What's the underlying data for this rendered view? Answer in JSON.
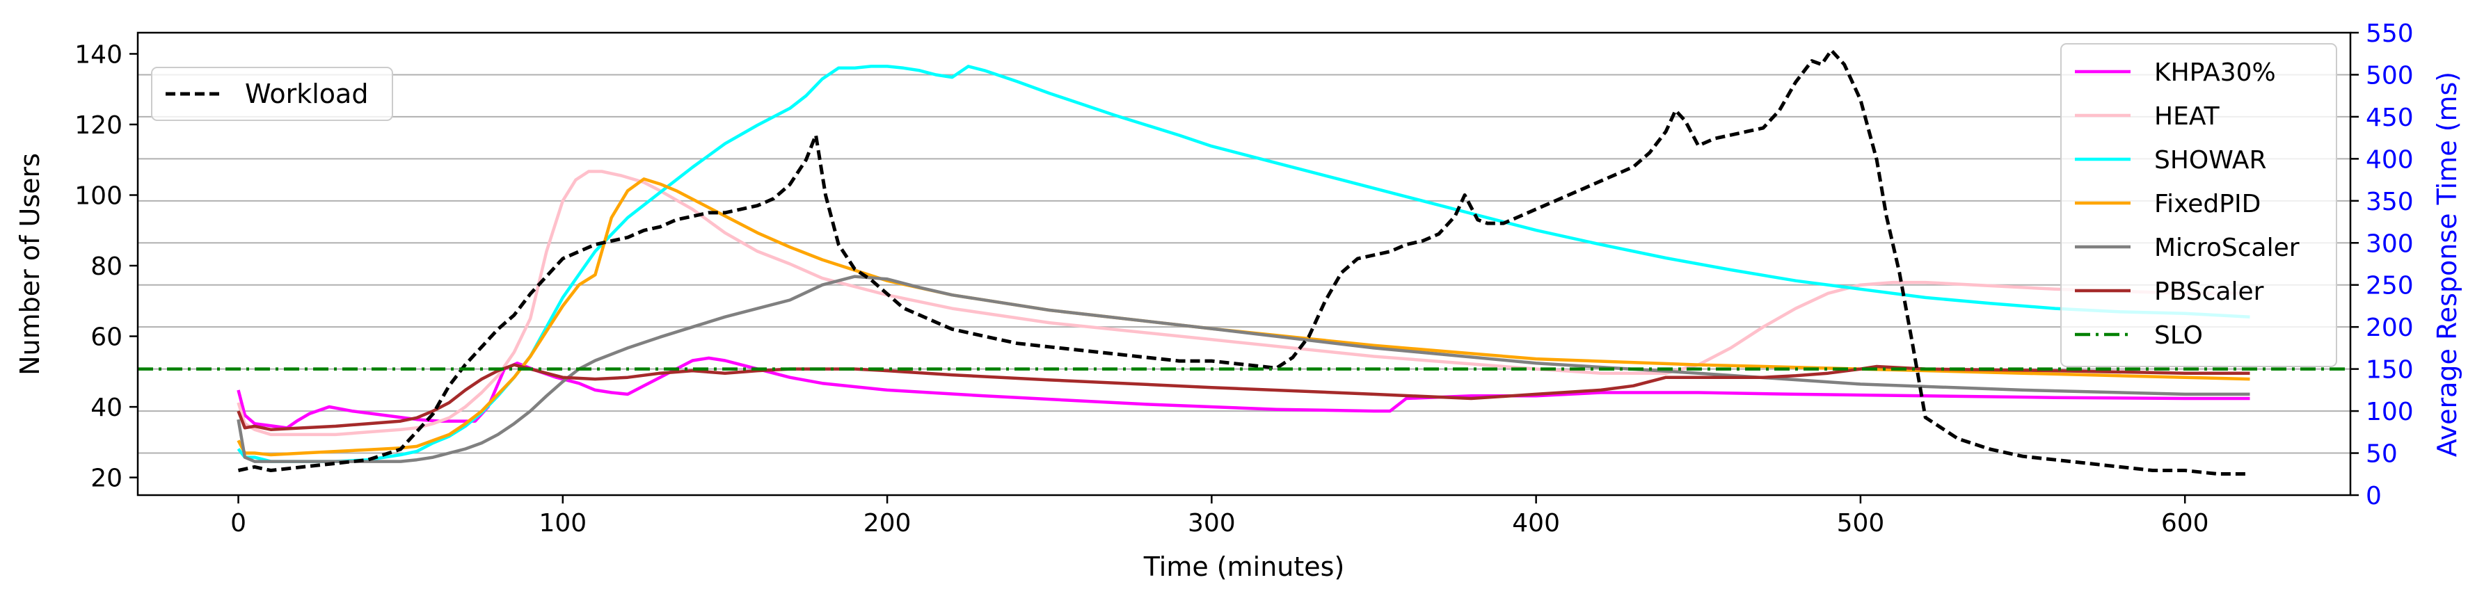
{
  "chart_data": {
    "type": "line",
    "xlabel": "Time (minutes)",
    "ylabel": "Number of Users",
    "ylabel_right": "Average Response Time (ms)",
    "xlim": [
      -31,
      651
    ],
    "ylim": [
      15,
      146
    ],
    "ylim_right": [
      0,
      550
    ],
    "xticks": [
      0,
      100,
      200,
      300,
      400,
      500,
      600
    ],
    "yticks": [
      20,
      40,
      60,
      80,
      100,
      120,
      140
    ],
    "yticks_right": [
      0,
      50,
      100,
      150,
      200,
      250,
      300,
      350,
      400,
      450,
      500,
      550
    ],
    "grid": "horizontal, right axis",
    "right_axis_color": "#0000ff",
    "legend_left": {
      "placement": "upper-left",
      "entries": [
        "Workload"
      ]
    },
    "legend_right": {
      "placement": "upper-right",
      "entries": [
        "KHPA30%",
        "HEAT",
        "SHOWAR",
        "FixedPID",
        "MicroScaler",
        "PBScaler",
        "SLO"
      ]
    },
    "workload": {
      "name": "Workload",
      "axis": "left",
      "color": "#000000",
      "style": "dashed",
      "x": [
        0,
        5,
        10,
        20,
        30,
        40,
        50,
        55,
        60,
        65,
        70,
        75,
        80,
        85,
        90,
        95,
        100,
        105,
        110,
        115,
        120,
        125,
        130,
        135,
        140,
        145,
        150,
        155,
        160,
        165,
        170,
        175,
        178,
        181,
        185,
        190,
        195,
        200,
        205,
        210,
        215,
        220,
        225,
        230,
        240,
        250,
        260,
        270,
        280,
        290,
        300,
        310,
        320,
        325,
        330,
        335,
        340,
        345,
        350,
        355,
        360,
        365,
        370,
        375,
        378,
        382,
        385,
        390,
        395,
        400,
        405,
        410,
        415,
        420,
        425,
        430,
        435,
        440,
        443,
        446,
        450,
        455,
        460,
        465,
        470,
        475,
        480,
        485,
        488,
        491,
        495,
        500,
        505,
        508,
        512,
        516,
        520,
        525,
        530,
        540,
        550,
        560,
        570,
        580,
        590,
        600,
        610,
        620
      ],
      "y": [
        22,
        23,
        22,
        23,
        24,
        25,
        28,
        33,
        38,
        46,
        52,
        57,
        62,
        66,
        72,
        77,
        82,
        84,
        86,
        87,
        88,
        90,
        91,
        93,
        94,
        95,
        95,
        96,
        97,
        99,
        103,
        110,
        117,
        100,
        86,
        79,
        76,
        72,
        68,
        66,
        64,
        62,
        61,
        60,
        58,
        57,
        56,
        55,
        54,
        53,
        53,
        52,
        51,
        54,
        60,
        70,
        78,
        82,
        83,
        84,
        86,
        87,
        89,
        94,
        100,
        93,
        92,
        92,
        94,
        96,
        98,
        100,
        102,
        104,
        106,
        108,
        112,
        118,
        124,
        121,
        114,
        116,
        117,
        118,
        119,
        124,
        132,
        138,
        137,
        141,
        137,
        127,
        110,
        94,
        78,
        58,
        37,
        34,
        31,
        28,
        26,
        25,
        24,
        23,
        22,
        22,
        21,
        21
      ]
    },
    "series": [
      {
        "name": "KHPA30%",
        "axis": "right",
        "color": "#ff00ff",
        "x": [
          0,
          2,
          5,
          15,
          18,
          22,
          28,
          35,
          45,
          55,
          62,
          67,
          73,
          77,
          82,
          86,
          92,
          98,
          105,
          110,
          115,
          120,
          125,
          130,
          135,
          140,
          145,
          150,
          160,
          170,
          180,
          200,
          230,
          280,
          320,
          350,
          355,
          360,
          380,
          400,
          420,
          440,
          450,
          480,
          520,
          560,
          600,
          620
        ],
        "y": [
          125,
          95,
          85,
          80,
          88,
          97,
          105,
          100,
          95,
          90,
          88,
          88,
          88,
          105,
          150,
          157,
          148,
          140,
          133,
          125,
          122,
          120,
          130,
          140,
          150,
          160,
          163,
          160,
          150,
          140,
          133,
          125,
          118,
          108,
          102,
          100,
          100,
          115,
          118,
          118,
          122,
          122,
          122,
          120,
          118,
          116,
          115,
          115
        ]
      },
      {
        "name": "HEAT",
        "axis": "right",
        "color": "#ffc0cb",
        "x": [
          0,
          2,
          5,
          10,
          20,
          30,
          40,
          50,
          55,
          60,
          65,
          70,
          75,
          80,
          85,
          90,
          95,
          100,
          104,
          108,
          112,
          118,
          125,
          130,
          140,
          150,
          160,
          170,
          180,
          200,
          220,
          250,
          300,
          350,
          400,
          420,
          430,
          440,
          450,
          460,
          470,
          480,
          490,
          500,
          510,
          520,
          560,
          600,
          620
        ],
        "y": [
          110,
          85,
          78,
          72,
          72,
          72,
          75,
          78,
          80,
          85,
          92,
          105,
          122,
          142,
          170,
          210,
          290,
          350,
          375,
          385,
          385,
          380,
          372,
          362,
          340,
          312,
          290,
          275,
          258,
          238,
          222,
          205,
          185,
          165,
          150,
          145,
          145,
          145,
          155,
          175,
          200,
          222,
          240,
          250,
          253,
          253,
          245,
          240,
          240
        ]
      },
      {
        "name": "SHOWAR",
        "axis": "right",
        "color": "#00ffff",
        "x": [
          0,
          2,
          5,
          10,
          20,
          30,
          40,
          50,
          55,
          60,
          65,
          70,
          75,
          80,
          85,
          90,
          95,
          100,
          110,
          120,
          130,
          140,
          150,
          160,
          170,
          175,
          180,
          185,
          190,
          195,
          200,
          205,
          210,
          215,
          220,
          225,
          230,
          240,
          250,
          260,
          270,
          280,
          290,
          300,
          320,
          340,
          360,
          380,
          400,
          420,
          440,
          460,
          480,
          500,
          520,
          540,
          560,
          580,
          600,
          620
        ],
        "y": [
          55,
          45,
          45,
          40,
          40,
          40,
          42,
          48,
          52,
          62,
          70,
          82,
          98,
          118,
          140,
          165,
          200,
          235,
          290,
          330,
          360,
          390,
          418,
          440,
          460,
          475,
          495,
          508,
          508,
          510,
          510,
          508,
          505,
          500,
          497,
          510,
          505,
          492,
          478,
          465,
          452,
          440,
          428,
          415,
          395,
          375,
          355,
          335,
          315,
          298,
          282,
          268,
          255,
          245,
          235,
          228,
          222,
          218,
          216,
          212
        ]
      },
      {
        "name": "FixedPID",
        "axis": "right",
        "color": "#ffa500",
        "x": [
          0,
          2,
          5,
          10,
          20,
          30,
          40,
          50,
          55,
          60,
          65,
          70,
          75,
          80,
          85,
          90,
          95,
          100,
          105,
          110,
          115,
          120,
          125,
          130,
          135,
          140,
          150,
          160,
          170,
          180,
          200,
          220,
          250,
          300,
          350,
          400,
          450,
          500,
          550,
          600,
          620
        ],
        "y": [
          65,
          50,
          50,
          48,
          50,
          52,
          54,
          56,
          58,
          65,
          72,
          85,
          100,
          120,
          140,
          165,
          195,
          225,
          250,
          262,
          330,
          362,
          376,
          370,
          362,
          352,
          332,
          312,
          295,
          280,
          255,
          238,
          220,
          198,
          178,
          162,
          155,
          150,
          145,
          140,
          138
        ]
      },
      {
        "name": "MicroScaler",
        "axis": "right",
        "color": "#808080",
        "x": [
          0,
          2,
          5,
          10,
          20,
          30,
          40,
          50,
          55,
          60,
          65,
          70,
          75,
          80,
          85,
          90,
          95,
          100,
          105,
          110,
          120,
          130,
          140,
          150,
          160,
          170,
          180,
          190,
          200,
          210,
          220,
          250,
          300,
          350,
          400,
          450,
          500,
          550,
          600,
          620
        ],
        "y": [
          90,
          45,
          40,
          40,
          40,
          40,
          40,
          40,
          42,
          45,
          50,
          55,
          62,
          72,
          85,
          100,
          118,
          135,
          150,
          160,
          175,
          188,
          200,
          212,
          222,
          232,
          250,
          260,
          257,
          247,
          238,
          220,
          198,
          175,
          157,
          145,
          132,
          125,
          120,
          120
        ]
      },
      {
        "name": "PBScaler",
        "axis": "right",
        "color": "#a52a2a",
        "x": [
          0,
          2,
          5,
          10,
          20,
          30,
          40,
          50,
          55,
          60,
          65,
          70,
          75,
          80,
          85,
          90,
          95,
          100,
          110,
          120,
          130,
          140,
          150,
          160,
          170,
          180,
          190,
          200,
          220,
          250,
          300,
          350,
          380,
          400,
          420,
          430,
          440,
          450,
          460,
          470,
          480,
          490,
          500,
          505,
          510,
          520,
          560,
          600,
          620
        ],
        "y": [
          100,
          80,
          82,
          78,
          80,
          82,
          85,
          88,
          92,
          100,
          110,
          125,
          138,
          148,
          155,
          150,
          145,
          140,
          138,
          140,
          145,
          148,
          145,
          148,
          150,
          150,
          150,
          148,
          143,
          137,
          128,
          120,
          115,
          120,
          125,
          130,
          140,
          140,
          140,
          140,
          142,
          145,
          150,
          153,
          152,
          150,
          148,
          145,
          145
        ]
      },
      {
        "name": "SLO",
        "axis": "right",
        "color": "#008000",
        "style": "dashdot",
        "x": [
          -31,
          651
        ],
        "y": [
          150,
          150
        ]
      }
    ]
  }
}
